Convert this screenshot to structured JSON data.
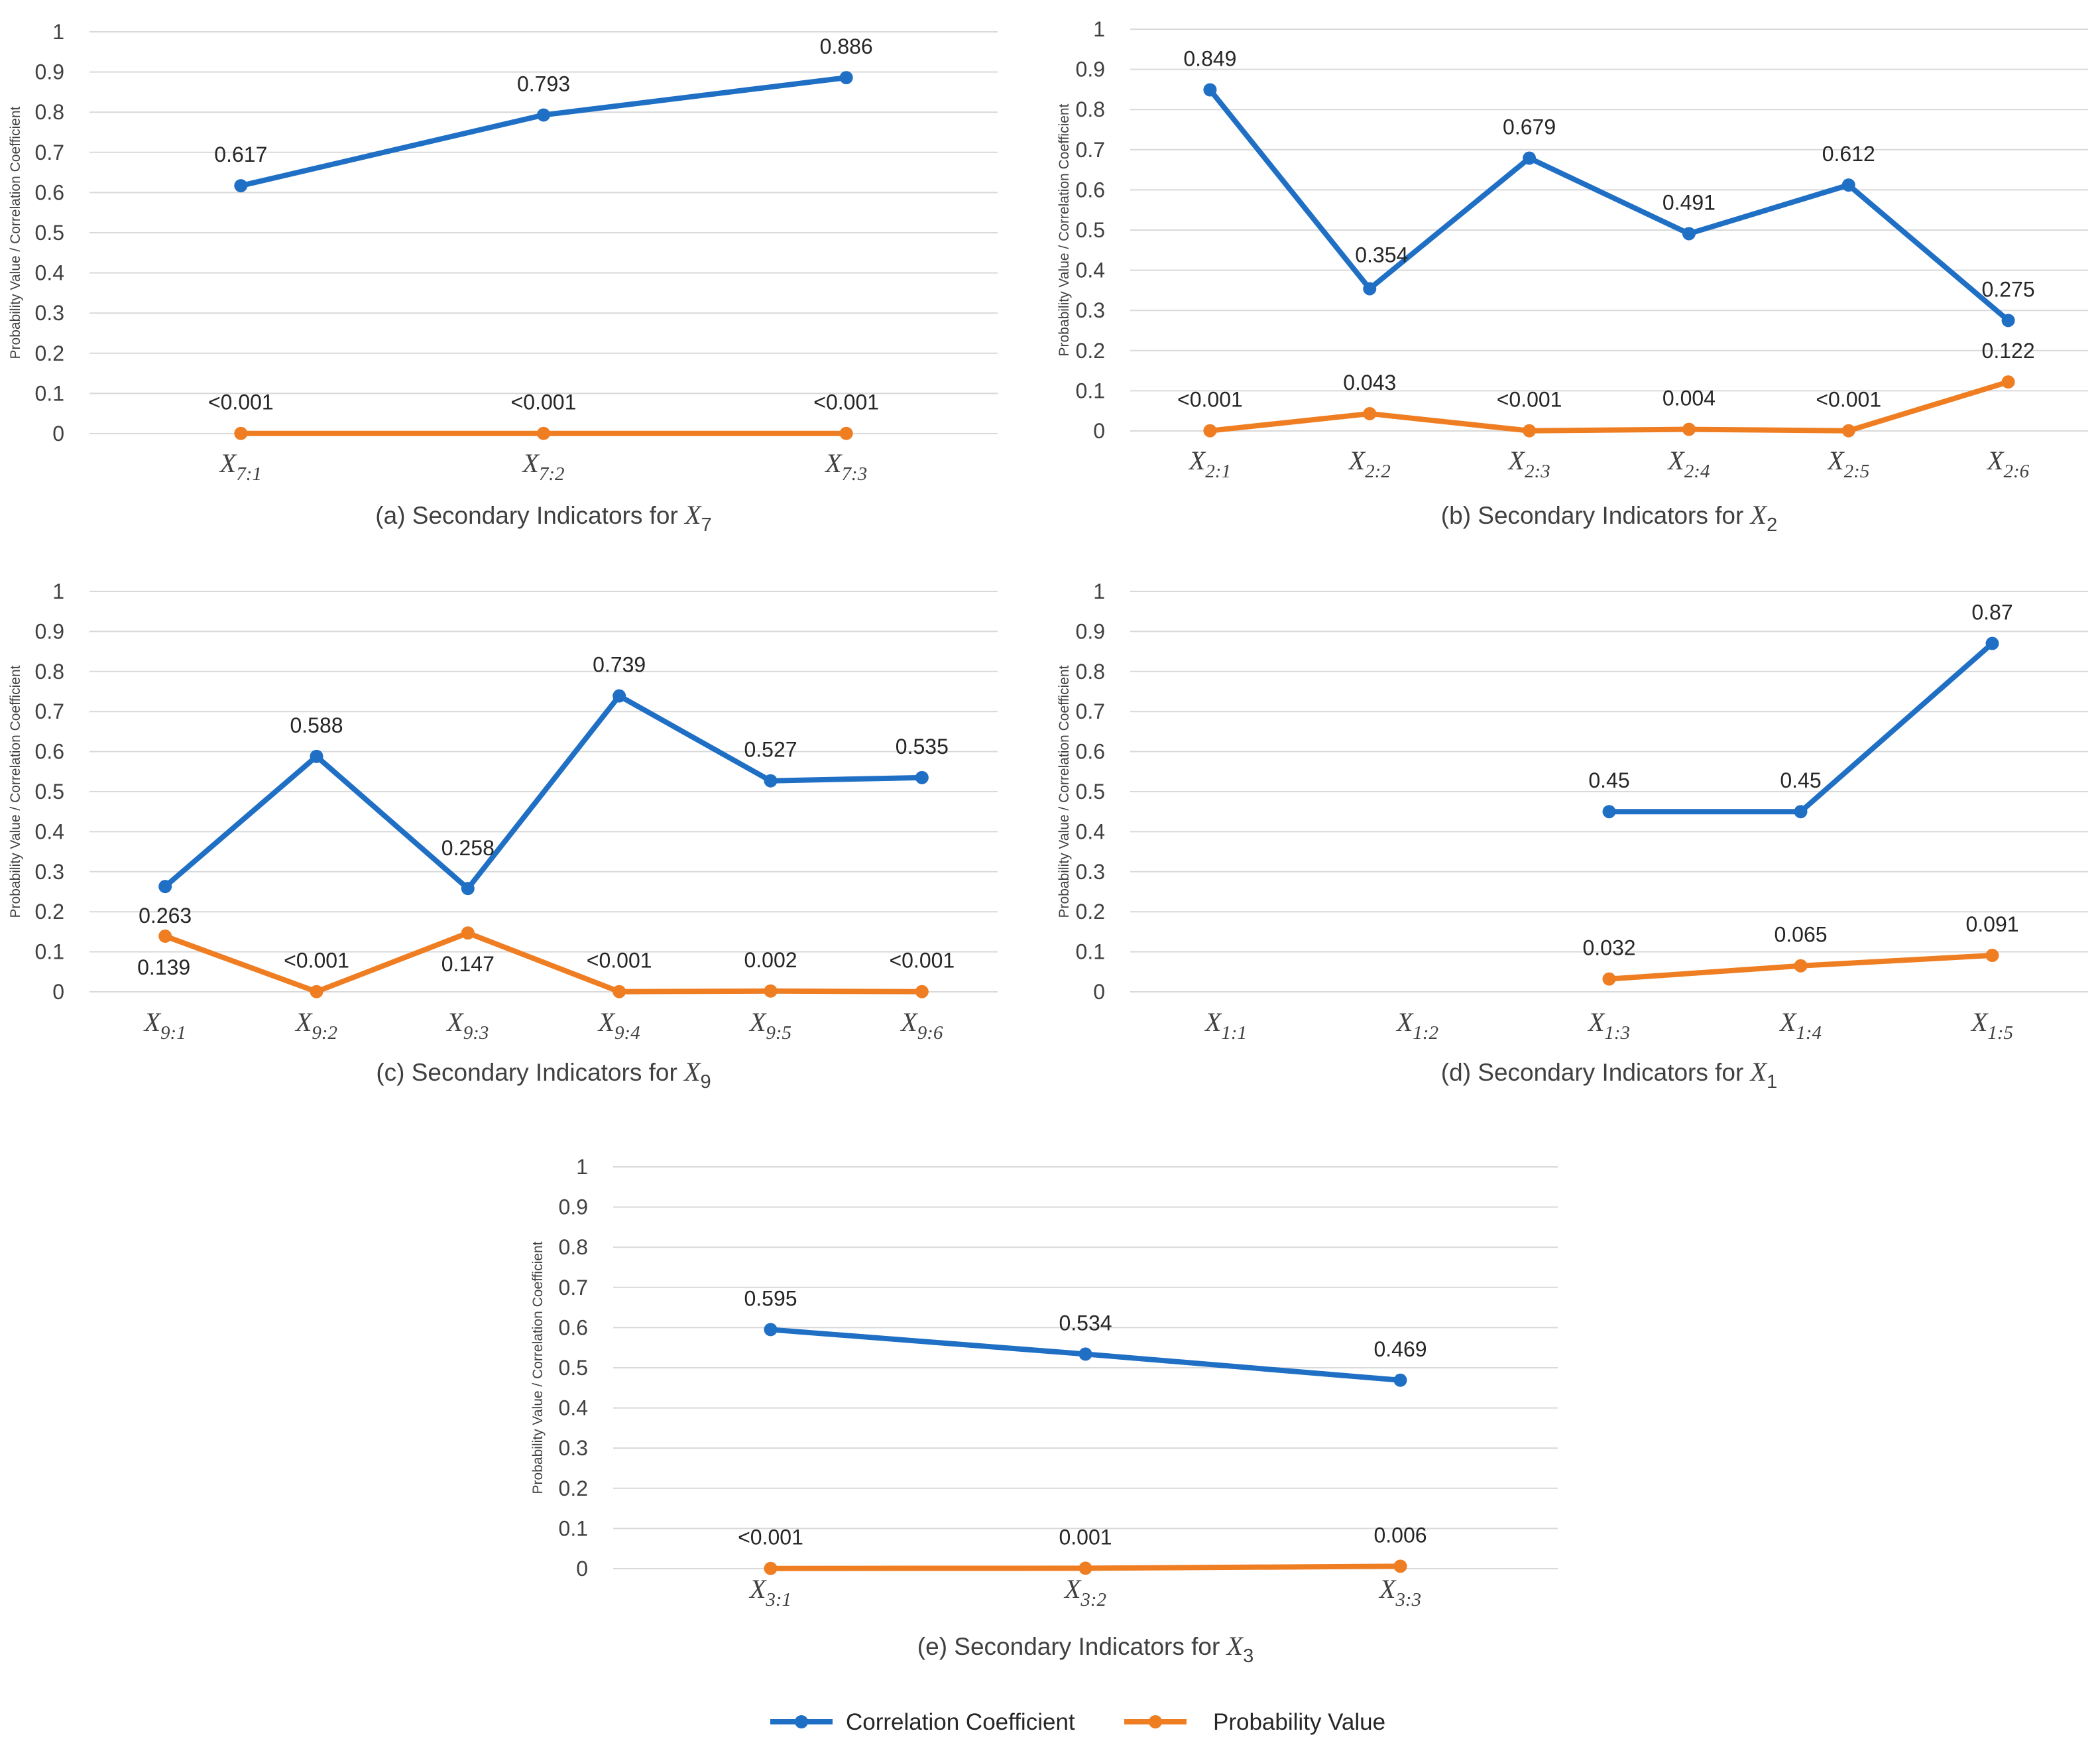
{
  "legend": {
    "corr_label": "Correlation Coefficient",
    "prob_label": "Probability Value"
  },
  "colors": {
    "corr": "#1f6fc5",
    "prob": "#ef7d22",
    "grid": "#d9d9d9",
    "text": "#404040"
  },
  "chart_data": [
    {
      "type": "line",
      "caption": "(a) Secondary Indicators for X7",
      "caption_prefix": "(a) Secondary Indicators for ",
      "caption_var": "X",
      "caption_sub": "7",
      "ylabel": "Probability Value   /   Correlation Coefficient",
      "ylim": [
        0,
        1
      ],
      "yticks": [
        "0",
        "0.1",
        "0.2",
        "0.3",
        "0.4",
        "0.5",
        "0.6",
        "0.7",
        "0.8",
        "0.9",
        "1"
      ],
      "categories": [
        {
          "var": "X",
          "sub": "7:1"
        },
        {
          "var": "X",
          "sub": "7:2"
        },
        {
          "var": "X",
          "sub": "7:3"
        }
      ],
      "series": [
        {
          "name": "Correlation Coefficient",
          "values": [
            0.617,
            0.793,
            0.886
          ],
          "labels": [
            "0.617",
            "0.793",
            "0.886"
          ]
        },
        {
          "name": "Probability Value",
          "values": [
            0.0005,
            0.0005,
            0.0005
          ],
          "labels": [
            "<0.001",
            "<0.001",
            "<0.001"
          ]
        }
      ]
    },
    {
      "type": "line",
      "caption": "(b) Secondary Indicators for X2",
      "caption_prefix": "(b) Secondary Indicators for ",
      "caption_var": "X",
      "caption_sub": "2",
      "ylabel": "Probability Value   /   Correlation Coefficient",
      "ylim": [
        0,
        1
      ],
      "yticks": [
        "0",
        "0.1",
        "0.2",
        "0.3",
        "0.4",
        "0.5",
        "0.6",
        "0.7",
        "0.8",
        "0.9",
        "1"
      ],
      "categories": [
        {
          "var": "X",
          "sub": "2:1"
        },
        {
          "var": "X",
          "sub": "2:2"
        },
        {
          "var": "X",
          "sub": "2:3"
        },
        {
          "var": "X",
          "sub": "2:4"
        },
        {
          "var": "X",
          "sub": "2:5"
        },
        {
          "var": "X",
          "sub": "2:6"
        }
      ],
      "series": [
        {
          "name": "Correlation Coefficient",
          "values": [
            0.849,
            0.354,
            0.679,
            0.491,
            0.612,
            0.275
          ],
          "labels": [
            "0.849",
            "0.354",
            "0.679",
            "0.491",
            "0.612",
            "0.275"
          ]
        },
        {
          "name": "Probability Value",
          "values": [
            0.0005,
            0.043,
            0.0005,
            0.004,
            0.0005,
            0.122
          ],
          "labels": [
            "<0.001",
            "0.043",
            "<0.001",
            "0.004",
            "<0.001",
            "0.122"
          ]
        }
      ]
    },
    {
      "type": "line",
      "caption": "(c) Secondary Indicators for X9",
      "caption_prefix": "(c) Secondary Indicators for ",
      "caption_var": "X",
      "caption_sub": "9",
      "ylabel": "Probability Value   /   Correlation Coefficient",
      "ylim": [
        0,
        1
      ],
      "yticks": [
        "0",
        "0.1",
        "0.2",
        "0.3",
        "0.4",
        "0.5",
        "0.6",
        "0.7",
        "0.8",
        "0.9",
        "1"
      ],
      "categories": [
        {
          "var": "X",
          "sub": "9:1"
        },
        {
          "var": "X",
          "sub": "9:2"
        },
        {
          "var": "X",
          "sub": "9:3"
        },
        {
          "var": "X",
          "sub": "9:4"
        },
        {
          "var": "X",
          "sub": "9:5"
        },
        {
          "var": "X",
          "sub": "9:6"
        }
      ],
      "series": [
        {
          "name": "Correlation Coefficient",
          "values": [
            0.263,
            0.588,
            0.258,
            0.739,
            0.527,
            0.535
          ],
          "labels": [
            "0.263",
            "0.588",
            "0.258",
            "0.739",
            "0.527",
            "0.535"
          ]
        },
        {
          "name": "Probability Value",
          "values": [
            0.139,
            0.0005,
            0.147,
            0.0005,
            0.002,
            0.0005
          ],
          "labels": [
            "0.139",
            "<0.001",
            "0.147",
            "<0.001",
            "0.002",
            "<0.001"
          ]
        }
      ]
    },
    {
      "type": "line",
      "caption": "(d) Secondary Indicators for X1",
      "caption_prefix": "(d) Secondary Indicators for ",
      "caption_var": "X",
      "caption_sub": "1",
      "ylabel": "Probability Value   /   Correlation Coefficient",
      "ylim": [
        0,
        1
      ],
      "yticks": [
        "0",
        "0.1",
        "0.2",
        "0.3",
        "0.4",
        "0.5",
        "0.6",
        "0.7",
        "0.8",
        "0.9",
        "1"
      ],
      "categories": [
        {
          "var": "X",
          "sub": "1:1"
        },
        {
          "var": "X",
          "sub": "1:2"
        },
        {
          "var": "X",
          "sub": "1:3"
        },
        {
          "var": "X",
          "sub": "1:4"
        },
        {
          "var": "X",
          "sub": "1:5"
        }
      ],
      "series": [
        {
          "name": "Correlation Coefficient",
          "values": [
            null,
            null,
            0.45,
            0.45,
            0.87
          ],
          "labels": [
            null,
            null,
            "0.45",
            "0.45",
            "0.87"
          ]
        },
        {
          "name": "Probability Value",
          "values": [
            null,
            null,
            0.032,
            0.065,
            0.091
          ],
          "labels": [
            null,
            null,
            "0.032",
            "0.065",
            "0.091"
          ]
        }
      ]
    },
    {
      "type": "line",
      "caption": "(e) Secondary Indicators for X3",
      "caption_prefix": "(e) Secondary Indicators for ",
      "caption_var": "X",
      "caption_sub": "3",
      "ylabel": "Probability Value   /   Correlation Coefficient",
      "ylim": [
        0,
        1
      ],
      "yticks": [
        "0",
        "0.1",
        "0.2",
        "0.3",
        "0.4",
        "0.5",
        "0.6",
        "0.7",
        "0.8",
        "0.9",
        "1"
      ],
      "categories": [
        {
          "var": "X",
          "sub": "3:1"
        },
        {
          "var": "X",
          "sub": "3:2"
        },
        {
          "var": "X",
          "sub": "3:3"
        }
      ],
      "series": [
        {
          "name": "Correlation Coefficient",
          "values": [
            0.595,
            0.534,
            0.469
          ],
          "labels": [
            "0.595",
            "0.534",
            "0.469"
          ]
        },
        {
          "name": "Probability Value",
          "values": [
            0.0005,
            0.001,
            0.006
          ],
          "labels": [
            "<0.001",
            "0.001",
            "0.006"
          ]
        }
      ]
    }
  ]
}
